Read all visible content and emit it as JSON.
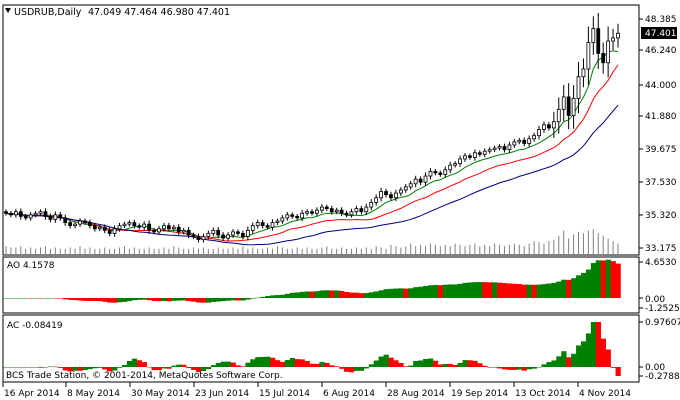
{
  "header": {
    "symbol_timeframe": "USDRUB,Daily",
    "ohlc": "47.049 47.464 46.980 47.401"
  },
  "price_panel": {
    "current_price": "47.401",
    "y_tick_labels": [
      "48.385",
      "46.240",
      "44.000",
      "41.880",
      "39.675",
      "37.530",
      "35.320",
      "33.175"
    ]
  },
  "ao_panel": {
    "label": "AO 4.1578",
    "y_tick_labels": [
      "4.6530",
      "0.00",
      "-1.2525"
    ]
  },
  "ac_panel": {
    "label": "AC -0.08419",
    "y_tick_labels": [
      "0.97607",
      "0.00",
      "-0.27889"
    ]
  },
  "watermark": "BCS Trade Station, © 2001-2014, MetaQuotes Software Corp.",
  "x_axis_labels": [
    "16 Apr 2014",
    "8 May 2014",
    "30 May 2014",
    "23 Jun 2014",
    "15 Jul 2014",
    "6 Aug 2014",
    "28 Aug 2014",
    "19 Sep 2014",
    "13 Oct 2014",
    "4 Nov 2014"
  ],
  "colors": {
    "background": "#ffffff",
    "candle": "#000000",
    "ma_fast": "#008000",
    "ma_mid": "#ff0000",
    "ma_slow": "#000080",
    "volume": "#808080",
    "osc_up": "#008000",
    "osc_down": "#ff0000"
  },
  "chart_data": {
    "type": "candlestick",
    "instrument": "USDRUB",
    "timeframe": "Daily",
    "price_range": [
      33.175,
      48.9
    ],
    "close_series": [
      35.8,
      35.7,
      35.9,
      35.6,
      35.5,
      35.7,
      35.8,
      35.9,
      35.6,
      35.4,
      35.7,
      35.5,
      35.2,
      35.0,
      35.1,
      35.3,
      35.2,
      35.0,
      34.8,
      34.9,
      34.7,
      34.5,
      34.8,
      35.0,
      35.1,
      35.2,
      35.0,
      34.9,
      35.1,
      34.7,
      34.6,
      34.8,
      35.0,
      34.8,
      34.9,
      34.6,
      34.7,
      34.4,
      34.3,
      34.1,
      34.3,
      34.5,
      34.7,
      34.4,
      34.2,
      34.4,
      34.6,
      34.5,
      34.3,
      34.7,
      35.0,
      35.2,
      35.0,
      34.9,
      35.2,
      35.3,
      35.5,
      35.7,
      35.6,
      35.5,
      35.8,
      35.9,
      35.8,
      36.0,
      36.2,
      36.1,
      35.9,
      36.0,
      35.8,
      35.7,
      35.9,
      36.1,
      35.9,
      36.2,
      36.5,
      36.8,
      37.2,
      37.0,
      36.8,
      37.1,
      37.3,
      37.5,
      37.7,
      38.0,
      37.8,
      38.2,
      38.5,
      38.4,
      38.3,
      38.6,
      38.9,
      39.0,
      39.3,
      39.5,
      39.4,
      39.7,
      39.6,
      39.8,
      39.9,
      40.0,
      40.1,
      39.9,
      40.2,
      40.4,
      40.5,
      40.3,
      40.6,
      40.8,
      41.2,
      41.5,
      41.3,
      41.7,
      42.5,
      43.3,
      42.1,
      43.2,
      44.6,
      45.1,
      46.8,
      47.7,
      46.1,
      45.5,
      46.9,
      47.1,
      47.401
    ],
    "volume_relative": [
      0.3,
      0.25,
      0.25,
      0.3,
      0.2,
      0.25,
      0.2,
      0.25,
      0.3,
      0.2,
      0.25,
      0.2,
      0.2,
      0.25,
      0.2,
      0.3,
      0.2,
      0.25,
      0.2,
      0.2,
      0.25,
      0.2,
      0.2,
      0.25,
      0.3,
      0.2,
      0.25,
      0.2,
      0.2,
      0.25,
      0.2,
      0.2,
      0.25,
      0.2,
      0.3,
      0.25,
      0.2,
      0.2,
      0.25,
      0.2,
      0.25,
      0.2,
      0.2,
      0.25,
      0.2,
      0.2,
      0.25,
      0.2,
      0.3,
      0.2,
      0.25,
      0.2,
      0.2,
      0.25,
      0.2,
      0.3,
      0.25,
      0.2,
      0.2,
      0.25,
      0.2,
      0.25,
      0.2,
      0.2,
      0.25,
      0.3,
      0.2,
      0.2,
      0.25,
      0.2,
      0.2,
      0.25,
      0.2,
      0.25,
      0.2,
      0.3,
      0.25,
      0.2,
      0.35,
      0.3,
      0.25,
      0.3,
      0.4,
      0.3,
      0.35,
      0.3,
      0.4,
      0.35,
      0.3,
      0.35,
      0.3,
      0.4,
      0.35,
      0.3,
      0.35,
      0.4,
      0.3,
      0.35,
      0.3,
      0.4,
      0.35,
      0.3,
      0.35,
      0.4,
      0.35,
      0.3,
      0.4,
      0.5,
      0.45,
      0.4,
      0.5,
      0.55,
      0.7,
      0.9,
      0.6,
      0.75,
      0.85,
      0.8,
      0.9,
      0.95,
      0.8,
      0.7,
      0.6,
      0.5,
      0.4
    ],
    "indicators": [
      {
        "name": "AO 4.1578",
        "range": [
          -1.2525,
          4.653
        ]
      },
      {
        "name": "AC -0.08419",
        "range": [
          -0.27889,
          0.97607
        ]
      }
    ]
  }
}
